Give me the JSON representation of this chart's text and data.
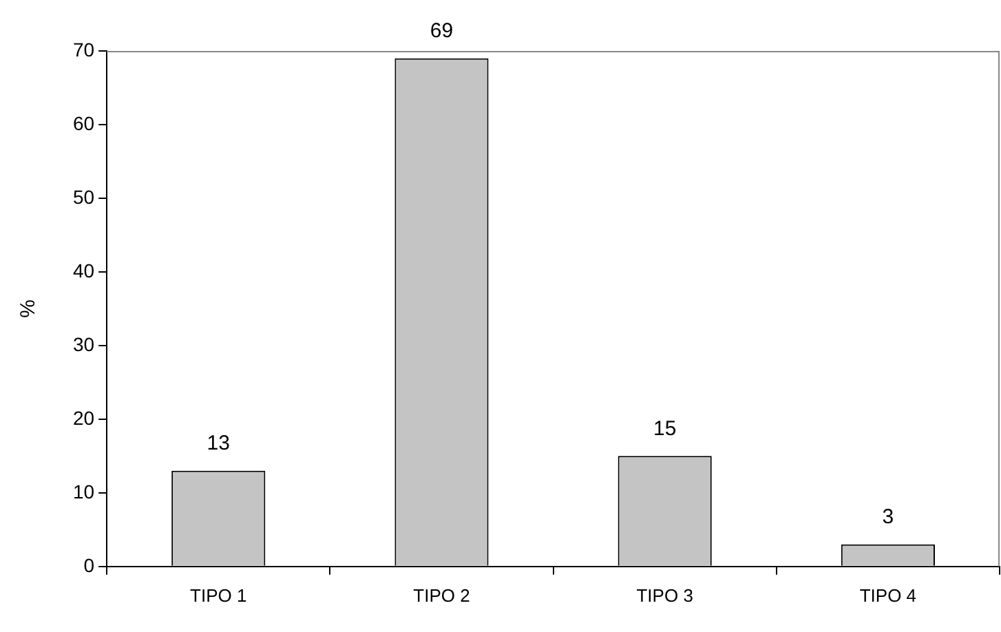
{
  "chart_data": {
    "type": "bar",
    "ylabel": "%",
    "categories": [
      "TIPO 1",
      "TIPO 2",
      "TIPO 3",
      "TIPO 4"
    ],
    "values": [
      13,
      69,
      15,
      3
    ],
    "color": "#c4c4c4",
    "ylim": [
      0,
      70
    ],
    "yticks": [
      0,
      10,
      20,
      30,
      40,
      50,
      60,
      70
    ],
    "grid": false,
    "legend": false,
    "data_labels": true
  }
}
